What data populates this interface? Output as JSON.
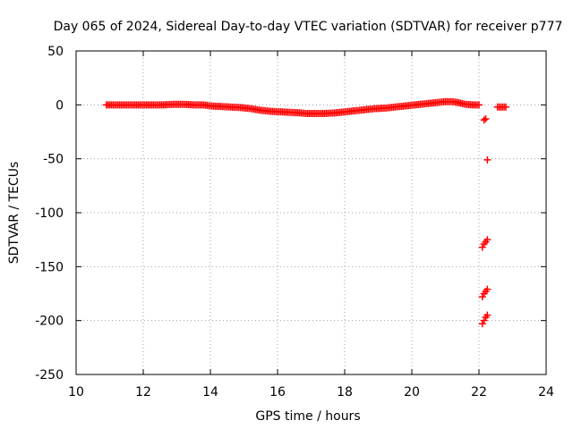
{
  "chart_data": {
    "type": "scatter",
    "title": "Day 065 of 2024, Sidereal Day-to-day VTEC variation (SDTVAR) for receiver p777",
    "xlabel": "GPS time / hours",
    "ylabel": "SDTVAR / TECUs",
    "xlim": [
      10,
      24
    ],
    "ylim": [
      -250,
      50
    ],
    "x_ticks": [
      10,
      12,
      14,
      16,
      18,
      20,
      22,
      24
    ],
    "y_ticks": [
      -250,
      -200,
      -150,
      -100,
      -50,
      0,
      50
    ],
    "x_tick_labels": [
      "10",
      "12",
      "14",
      "16",
      "18",
      "20",
      "22",
      "24"
    ],
    "y_tick_labels": [
      "-250",
      "-200",
      "-150",
      "-100",
      "-50",
      "0",
      "50"
    ],
    "grid": true,
    "marker": "+",
    "marker_color": "#ff0000",
    "series": [
      {
        "name": "SDTVAR main",
        "points": [
          [
            10.9,
            0
          ],
          [
            11.2,
            0
          ],
          [
            11.5,
            0
          ],
          [
            11.8,
            0
          ],
          [
            12.0,
            0
          ],
          [
            12.3,
            0
          ],
          [
            12.6,
            0
          ],
          [
            12.9,
            0.5
          ],
          [
            13.2,
            0.5
          ],
          [
            13.5,
            0
          ],
          [
            13.8,
            0
          ],
          [
            14.0,
            -1
          ],
          [
            14.3,
            -1.5
          ],
          [
            14.6,
            -2
          ],
          [
            14.9,
            -2.5
          ],
          [
            15.2,
            -3.5
          ],
          [
            15.5,
            -5
          ],
          [
            15.8,
            -6
          ],
          [
            16.1,
            -6.5
          ],
          [
            16.4,
            -7
          ],
          [
            16.7,
            -7.5
          ],
          [
            16.85,
            -8
          ],
          [
            17.1,
            -8
          ],
          [
            17.4,
            -8
          ],
          [
            17.7,
            -7.5
          ],
          [
            18.0,
            -6.5
          ],
          [
            18.3,
            -5.5
          ],
          [
            18.6,
            -4.5
          ],
          [
            18.9,
            -3.5
          ],
          [
            19.2,
            -3
          ],
          [
            19.5,
            -2
          ],
          [
            19.8,
            -1
          ],
          [
            20.1,
            0
          ],
          [
            20.4,
            1
          ],
          [
            20.7,
            2
          ],
          [
            21.0,
            3
          ],
          [
            21.2,
            3
          ],
          [
            21.4,
            2
          ],
          [
            21.6,
            0.5
          ],
          [
            21.8,
            0
          ],
          [
            22.0,
            0
          ]
        ]
      },
      {
        "name": "SDTVAR late segment",
        "points": [
          [
            22.55,
            -2
          ],
          [
            22.6,
            -2
          ],
          [
            22.65,
            -2
          ],
          [
            22.7,
            -2
          ],
          [
            22.75,
            -2
          ],
          [
            22.8,
            -2
          ]
        ]
      },
      {
        "name": "SDTVAR outliers",
        "points": [
          [
            22.15,
            -14
          ],
          [
            22.2,
            -13
          ],
          [
            22.25,
            -51
          ],
          [
            22.1,
            -132
          ],
          [
            22.15,
            -129
          ],
          [
            22.2,
            -127
          ],
          [
            22.25,
            -125
          ],
          [
            22.1,
            -178
          ],
          [
            22.15,
            -175
          ],
          [
            22.2,
            -173
          ],
          [
            22.25,
            -171
          ],
          [
            22.1,
            -203
          ],
          [
            22.15,
            -200
          ],
          [
            22.2,
            -197
          ],
          [
            22.25,
            -195
          ]
        ]
      }
    ]
  }
}
